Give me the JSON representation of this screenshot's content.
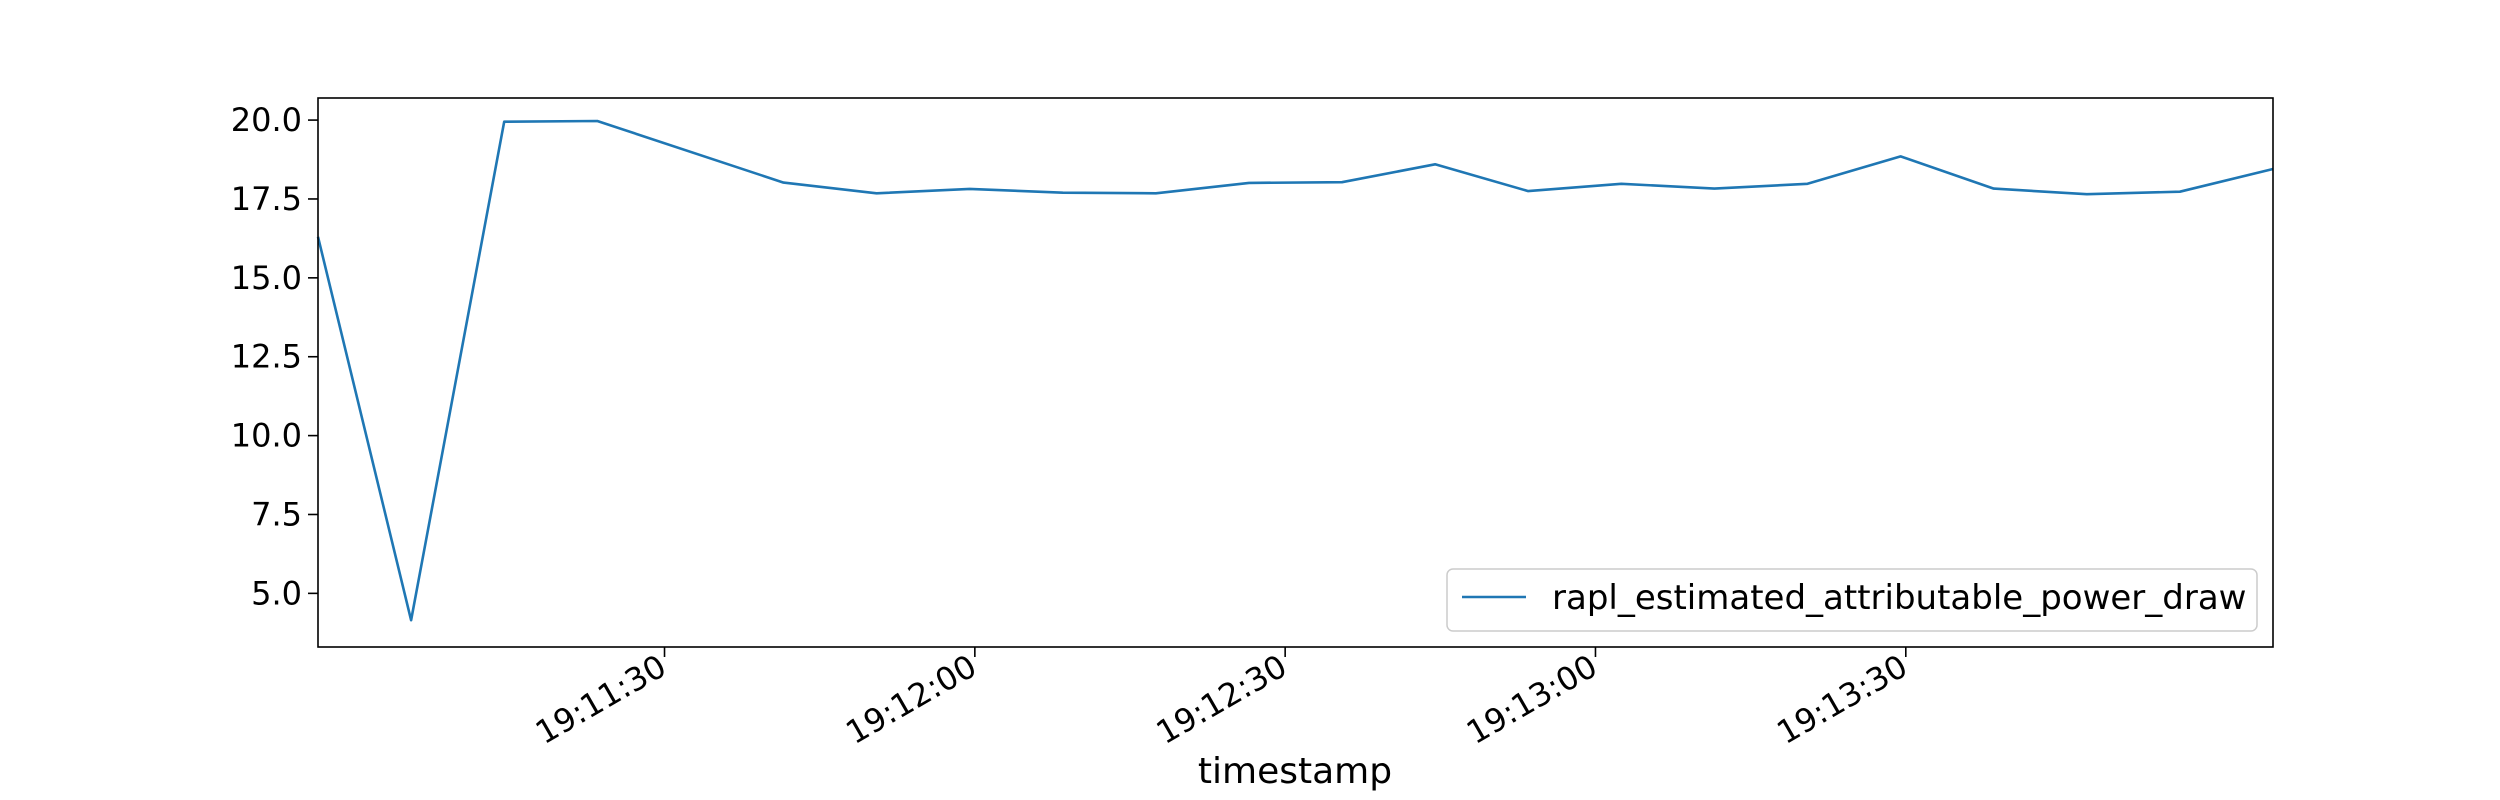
{
  "chart_data": {
    "type": "line",
    "title": "",
    "xlabel": "timestamp",
    "ylabel": "",
    "x_seconds": [
      0,
      9,
      18,
      27,
      45,
      54,
      63,
      72,
      81,
      90,
      99,
      108,
      117,
      126,
      135,
      144,
      153,
      162,
      171,
      180,
      189
    ],
    "x_range_seconds": [
      0,
      189
    ],
    "x_ticks": [
      {
        "t": 33.5,
        "label": "19:11:30"
      },
      {
        "t": 63.5,
        "label": "19:12:00"
      },
      {
        "t": 93.5,
        "label": "19:12:30"
      },
      {
        "t": 123.5,
        "label": "19:13:00"
      },
      {
        "t": 153.5,
        "label": "19:13:30"
      }
    ],
    "y_ticks": [
      "5.0",
      "7.5",
      "10.0",
      "12.5",
      "15.0",
      "17.5",
      "20.0"
    ],
    "ylim": [
      3.3,
      20.7
    ],
    "series": [
      {
        "name": "rapl_estimated_attributable_power_draw",
        "color": "#1f77b4",
        "values": [
          16.3,
          4.15,
          19.95,
          19.97,
          18.02,
          17.68,
          17.82,
          17.7,
          17.68,
          18.01,
          18.03,
          18.6,
          17.75,
          17.98,
          17.83,
          17.98,
          18.85,
          17.83,
          17.65,
          17.73,
          18.45
        ]
      }
    ],
    "legend": {
      "position": "lower-right",
      "entries": [
        "rapl_estimated_attributable_power_draw"
      ]
    },
    "grid": false
  }
}
